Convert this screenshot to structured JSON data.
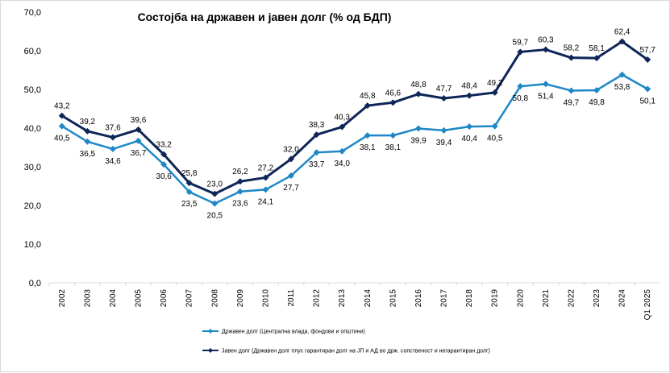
{
  "chart_data": {
    "type": "line",
    "title": "Состојба на државен и јавен долг (% од БДП)",
    "xlabel": "",
    "ylabel": "",
    "ylim": [
      0,
      70
    ],
    "y_ticks": [
      "0,0",
      "10,0",
      "20,0",
      "30,0",
      "40,0",
      "50,0",
      "60,0",
      "70,0"
    ],
    "grid": false,
    "legend_position": "bottom-left",
    "categories": [
      "2002",
      "2003",
      "2004",
      "2005",
      "2006",
      "2007",
      "2008",
      "2009",
      "2010",
      "2011",
      "2012",
      "2013",
      "2014",
      "2015",
      "2016",
      "2017",
      "2018",
      "2019",
      "2020",
      "2021",
      "2022",
      "2023",
      "2024",
      "Q1 2025"
    ],
    "series": [
      {
        "name": "Државен долг (Централна влада, фондови и општини)",
        "color": "#1e88c7",
        "marker": "diamond",
        "values": [
          40.5,
          36.5,
          34.6,
          36.7,
          30.6,
          23.5,
          20.5,
          23.6,
          24.1,
          27.7,
          33.7,
          34.0,
          38.1,
          38.1,
          39.9,
          39.4,
          40.4,
          40.5,
          50.8,
          51.4,
          49.7,
          49.8,
          53.8,
          50.1
        ],
        "labels": [
          "40,5",
          "36,5",
          "34,6",
          "36,7",
          "30,6",
          "23,5",
          "20,5",
          "23,6",
          "24,1",
          "27,7",
          "33,7",
          "34,0",
          "38,1",
          "38,1",
          "39,9",
          "39,4",
          "40,4",
          "40,5",
          "50,8",
          "51,4",
          "49,7",
          "49,8",
          "53,8",
          "50,1"
        ]
      },
      {
        "name": "Јавен долг (Државен долг плус гарантиран долг на ЈП и АД во држ. сопственост и негарантиран долг)",
        "color": "#0e2557",
        "marker": "diamond",
        "values": [
          43.2,
          39.2,
          37.6,
          39.6,
          33.2,
          25.8,
          23.0,
          26.2,
          27.2,
          32.0,
          38.3,
          40.3,
          45.8,
          46.6,
          48.8,
          47.7,
          48.4,
          49.2,
          59.7,
          60.3,
          58.2,
          58.1,
          62.4,
          57.7
        ],
        "labels": [
          "43,2",
          "39,2",
          "37,6",
          "39,6",
          "33,2",
          "25,8",
          "23,0",
          "26,2",
          "27,2",
          "32,0",
          "38,3",
          "40,3",
          "45,8",
          "46,6",
          "48,8",
          "47,7",
          "48,4",
          "49,2",
          "59,7",
          "60,3",
          "58,2",
          "58,1",
          "62,4",
          "57,7"
        ]
      }
    ]
  }
}
